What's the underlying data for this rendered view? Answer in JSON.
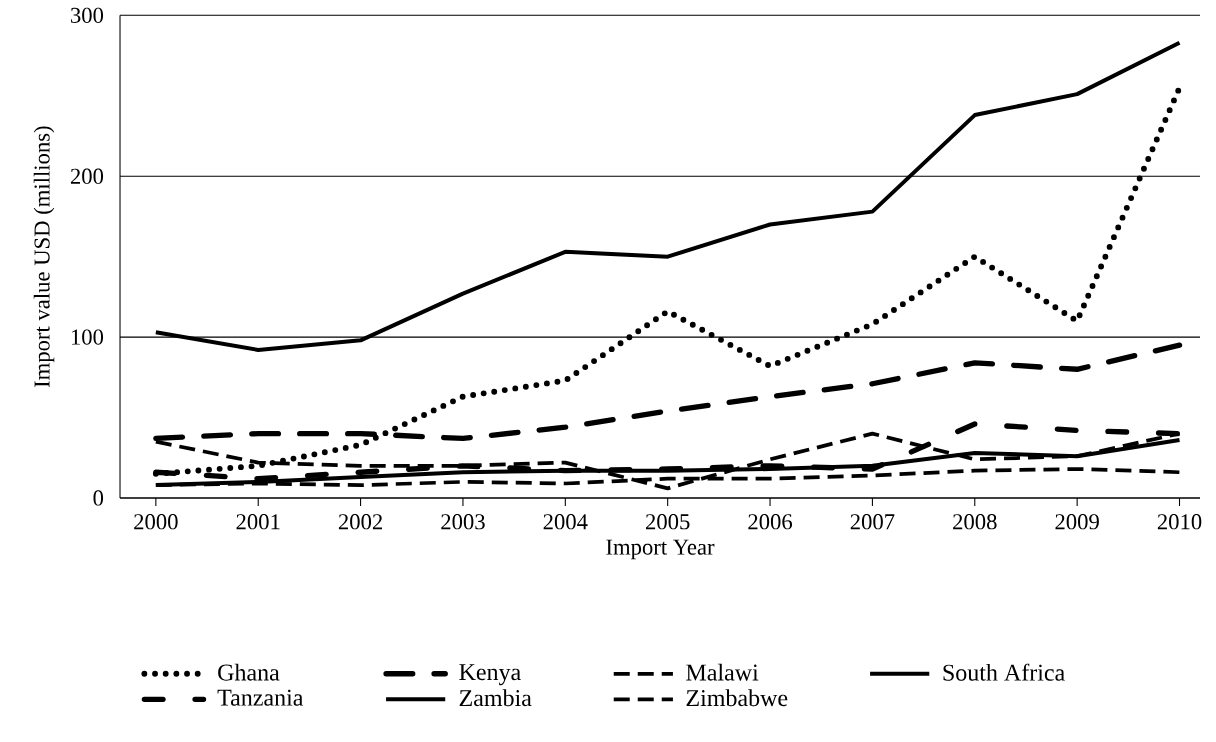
{
  "chart_data": {
    "type": "line",
    "xlabel": "Import Year",
    "ylabel": "Import value USD (millions)",
    "categories": [
      "2000",
      "2001",
      "2002",
      "2003",
      "2004",
      "2005",
      "2006",
      "2007",
      "2008",
      "2009",
      "2010"
    ],
    "ylim": [
      0,
      300
    ],
    "yticks": [
      0,
      100,
      200,
      300
    ],
    "grid": "y",
    "legend": "bottom",
    "marker": "none",
    "series": [
      {
        "name": "Ghana",
        "color": "#000000",
        "line_style": "dotted",
        "values": [
          15,
          20,
          33,
          63,
          73,
          116,
          82,
          108,
          150,
          110,
          255
        ]
      },
      {
        "name": "Kenya",
        "color": "#000000",
        "line_style": "long dash dot",
        "values": [
          37,
          40,
          40,
          37,
          44,
          54,
          63,
          71,
          84,
          80,
          95
        ]
      },
      {
        "name": "Malawi",
        "color": "#000000",
        "line_style": "dashed",
        "values": [
          8,
          9,
          8,
          10,
          9,
          12,
          12,
          14,
          17,
          18,
          16
        ]
      },
      {
        "name": "South Africa",
        "color": "#000000",
        "line_style": "solid",
        "values": [
          103,
          92,
          98,
          127,
          153,
          150,
          170,
          178,
          238,
          251,
          283
        ]
      },
      {
        "name": "Tanzania",
        "color": "#000000",
        "line_style": "dash dot",
        "values": [
          16,
          12,
          16,
          20,
          17,
          18,
          20,
          18,
          46,
          42,
          40
        ]
      },
      {
        "name": "Zambia",
        "color": "#000000",
        "line_style": "solid",
        "values": [
          8,
          10,
          13,
          16,
          17,
          17,
          18,
          20,
          28,
          26,
          36
        ]
      },
      {
        "name": "Zimbabwe",
        "color": "#000000",
        "line_style": "dashed",
        "values": [
          35,
          22,
          20,
          20,
          22,
          6,
          24,
          40,
          24,
          26,
          40
        ]
      }
    ]
  }
}
